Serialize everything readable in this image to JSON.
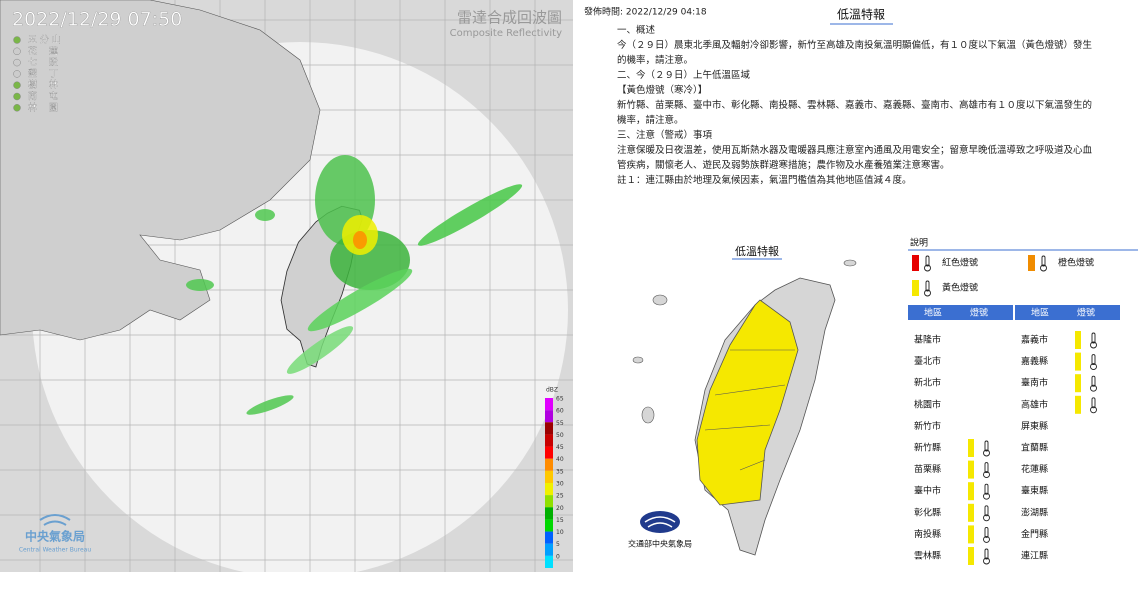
{
  "radar": {
    "timestamp": "2022/12/29  07:50",
    "title": "雷達合成回波圖",
    "subtitle": "Composite Reflectivity",
    "stations": [
      "五 分 山",
      "花　 蓮",
      "七　 股",
      "墾　 丁",
      "樹　 林",
      "南　 屯",
      "林　 園"
    ],
    "scale_unit": "dBZ",
    "scale_ticks": [
      65,
      60,
      55,
      50,
      45,
      40,
      35,
      30,
      25,
      20,
      15,
      10,
      5,
      0
    ],
    "scale_colors": [
      "#e000ff",
      "#b000e0",
      "#9b0000",
      "#c80000",
      "#ff0000",
      "#ff8c00",
      "#ffc800",
      "#f0f000",
      "#90e000",
      "#00b000",
      "#00d800",
      "#0060ff",
      "#00a0ff",
      "#00e0ff"
    ],
    "logo": "中央氣象局",
    "logo_en": "Central Weather Bureau"
  },
  "bulletin": {
    "published": "發佈時間: 2022/12/29 04:18",
    "title": "低溫特報",
    "paragraphs": [
      "一、概述",
      "今（２９日）晨東北季風及輻射冷卻影響，新竹至高雄及南投氣溫明顯偏低，有１０度以下氣溫（黃色燈號）發生的機率，請注意。",
      "二、今（２９日）上午低溫區域",
      "【黃色燈號（寒冷）】",
      "新竹縣、苗栗縣、臺中市、彰化縣、南投縣、雲林縣、嘉義市、嘉義縣、臺南市、高雄市有１０度以下氣溫發生的機率，請注意。",
      "三、注意（警戒）事項",
      "注意保暖及日夜溫差，使用瓦斯熱水器及電暖器具應注意室內通風及用電安全；留意早晚低溫導致之呼吸道及心血管疾病，關懷老人、遊民及弱勢族群避寒措施；農作物及水產養殖業注意寒害。",
      "註１：連江縣由於地理及氣候因素，氣溫門檻值為其他地區值減４度。"
    ]
  },
  "warning_map": {
    "title": "低溫特報",
    "caption": "交通部中央氣象局",
    "legend_title": "說明",
    "legend": [
      {
        "label": "紅色燈號",
        "color": "#e60000"
      },
      {
        "label": "橙色燈號",
        "color": "#f08c00"
      },
      {
        "label": "黃色燈號",
        "color": "#f5e800"
      }
    ],
    "headers": [
      "地區",
      "燈號"
    ],
    "tables": [
      [
        {
          "region": "基隆市",
          "light": null
        },
        {
          "region": "臺北市",
          "light": null
        },
        {
          "region": "新北市",
          "light": null
        },
        {
          "region": "桃園市",
          "light": null
        },
        {
          "region": "新竹市",
          "light": null
        },
        {
          "region": "新竹縣",
          "light": "#f5e800"
        },
        {
          "region": "苗栗縣",
          "light": "#f5e800"
        },
        {
          "region": "臺中市",
          "light": "#f5e800"
        },
        {
          "region": "彰化縣",
          "light": "#f5e800"
        },
        {
          "region": "南投縣",
          "light": "#f5e800"
        },
        {
          "region": "雲林縣",
          "light": "#f5e800"
        }
      ],
      [
        {
          "region": "嘉義市",
          "light": "#f5e800"
        },
        {
          "region": "嘉義縣",
          "light": "#f5e800"
        },
        {
          "region": "臺南市",
          "light": "#f5e800"
        },
        {
          "region": "高雄市",
          "light": "#f5e800"
        },
        {
          "region": "屏東縣",
          "light": null
        },
        {
          "region": "宜蘭縣",
          "light": null
        },
        {
          "region": "花蓮縣",
          "light": null
        },
        {
          "region": "臺東縣",
          "light": null
        },
        {
          "region": "澎湖縣",
          "light": null
        },
        {
          "region": "金門縣",
          "light": null
        },
        {
          "region": "連江縣",
          "light": null
        }
      ]
    ]
  }
}
